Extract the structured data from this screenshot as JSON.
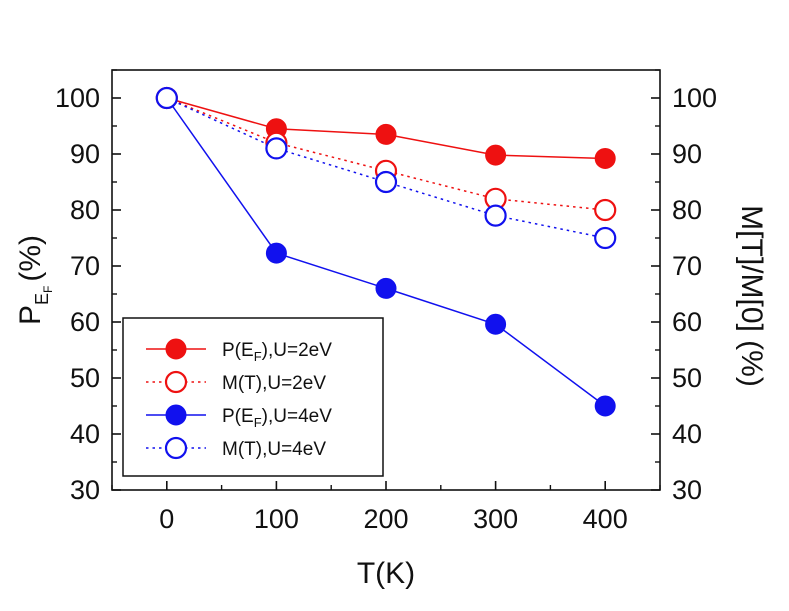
{
  "chart_data": {
    "type": "line",
    "x": [
      0,
      100,
      200,
      300,
      400
    ],
    "xlabel": "T(K)",
    "ylabel_left": {
      "main": "P",
      "sub": "E",
      "subsub": "F",
      "rest": "(%)"
    },
    "ylabel_right": "M[T]/M[0] (%)",
    "xlim": [
      -50,
      450
    ],
    "ylim": [
      30,
      105
    ],
    "xticks": [
      0,
      100,
      200,
      300,
      400
    ],
    "yticks": [
      30,
      40,
      50,
      60,
      70,
      80,
      90,
      100
    ],
    "grid": false,
    "legend_position": "bottom-left",
    "series": [
      {
        "label": "P(E",
        "label_sub": "F",
        "label_rest": "),U=2eV",
        "color": "#ee1111",
        "marker": "filled",
        "line": "solid",
        "values": [
          100,
          94.5,
          93.5,
          89.8,
          89.2
        ]
      },
      {
        "label": "M(T),U=2eV",
        "label_sub": "",
        "label_rest": "",
        "color": "#ee1111",
        "marker": "open",
        "line": "dotted",
        "values": [
          100,
          92,
          87,
          82,
          80
        ]
      },
      {
        "label": "P(E",
        "label_sub": "F",
        "label_rest": "),U=4eV",
        "color": "#1111ee",
        "marker": "filled",
        "line": "solid",
        "values": [
          100,
          72.3,
          66,
          59.6,
          45
        ]
      },
      {
        "label": "M(T),U=4eV",
        "label_sub": "",
        "label_rest": "",
        "color": "#1111ee",
        "marker": "open",
        "line": "dotted",
        "values": [
          100,
          91,
          85,
          79,
          75
        ]
      }
    ]
  }
}
